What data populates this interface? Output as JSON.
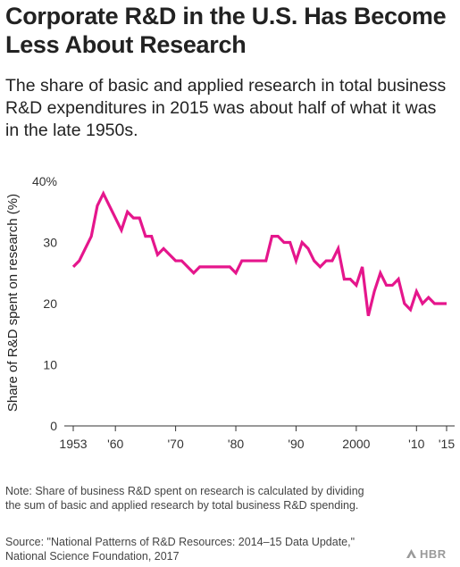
{
  "header": {
    "title": "Corporate R&D in the U.S. Has Become Less About Research",
    "subtitle": "The share of basic and applied research in total business R&D expenditures in 2015 was about half of what it was in the late 1950s."
  },
  "chart_data": {
    "type": "line",
    "title": "",
    "xlabel": "",
    "ylabel": "Share of R&D spent on research (%)",
    "ylim": [
      0,
      40
    ],
    "xlim": [
      1953,
      2015
    ],
    "y_ticks": [
      0,
      10,
      20,
      30,
      40
    ],
    "y_tick_labels": [
      "0",
      "10",
      "20",
      "30",
      "40%"
    ],
    "x_ticks": [
      1953,
      1960,
      1970,
      1980,
      1990,
      2000,
      2010,
      2015
    ],
    "x_tick_labels": [
      "1953",
      "'60",
      "'70",
      "'80",
      "'90",
      "2000",
      "'10",
      "'15"
    ],
    "grid": false,
    "color": "#e5168c",
    "series": [
      {
        "x": [
          1953,
          1954,
          1955,
          1956,
          1957,
          1958,
          1959,
          1960,
          1961,
          1962,
          1963,
          1964,
          1965,
          1966,
          1967,
          1968,
          1969,
          1970,
          1971,
          1972,
          1973,
          1974,
          1975,
          1976,
          1977,
          1978,
          1979,
          1980,
          1981,
          1982,
          1983,
          1984,
          1985,
          1986,
          1987,
          1988,
          1989,
          1990,
          1991,
          1992,
          1993,
          1994,
          1995,
          1996,
          1997,
          1998,
          1999,
          2000,
          2001,
          2002,
          2003,
          2004,
          2005,
          2006,
          2007,
          2008,
          2009,
          2010,
          2011,
          2012,
          2013,
          2014,
          2015
        ],
        "values": [
          26,
          27,
          29,
          31,
          36,
          38,
          36,
          34,
          32,
          35,
          34,
          34,
          31,
          31,
          28,
          29,
          28,
          27,
          27,
          26,
          25,
          26,
          26,
          26,
          26,
          26,
          26,
          25,
          27,
          27,
          27,
          27,
          27,
          31,
          31,
          30,
          30,
          27,
          30,
          29,
          27,
          26,
          27,
          27,
          29,
          24,
          24,
          23,
          26,
          18,
          22,
          25,
          23,
          23,
          24,
          20,
          19,
          22,
          20,
          21,
          20,
          20,
          20
        ]
      }
    ]
  },
  "footer": {
    "note": "Note: Share of business R&D spent on research is calculated by dividing the sum of basic and applied research by total business R&D spending.",
    "source": "Source: \"National Patterns of R&D Resources: 2014–15 Data Update,\" National Science Foundation, 2017",
    "logo": "HBR"
  }
}
